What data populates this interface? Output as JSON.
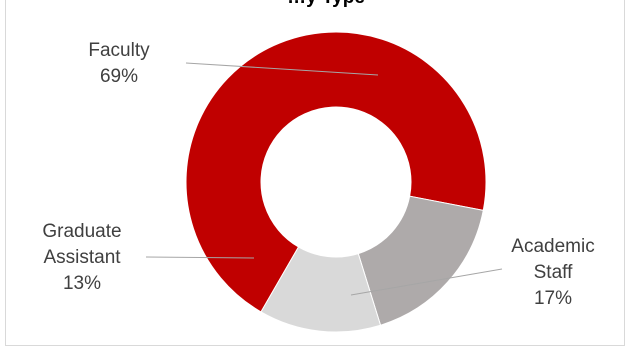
{
  "chart_data": {
    "type": "pie",
    "subtype": "doughnut",
    "title": "…y Type",
    "categories": [
      "Faculty",
      "Academic Staff",
      "Graduate Assistant"
    ],
    "values": [
      69,
      17,
      13
    ],
    "unit": "%",
    "colors": [
      "#c00000",
      "#aeaaaa",
      "#d9d9d9"
    ],
    "slices": [
      {
        "name": "Faculty",
        "value": 69,
        "label_lines": [
          "Faculty",
          "69%"
        ],
        "color": "#c00000"
      },
      {
        "name": "Academic Staff",
        "value": 17,
        "label_lines": [
          "Academic",
          "Staff",
          "17%"
        ],
        "color": "#aeaaaa"
      },
      {
        "name": "Graduate Assistant",
        "value": 13,
        "label_lines": [
          "Graduate",
          "Assistant",
          "13%"
        ],
        "color": "#d9d9d9"
      }
    ],
    "legend": "none",
    "leader_line_color": "#a6a6a6"
  }
}
